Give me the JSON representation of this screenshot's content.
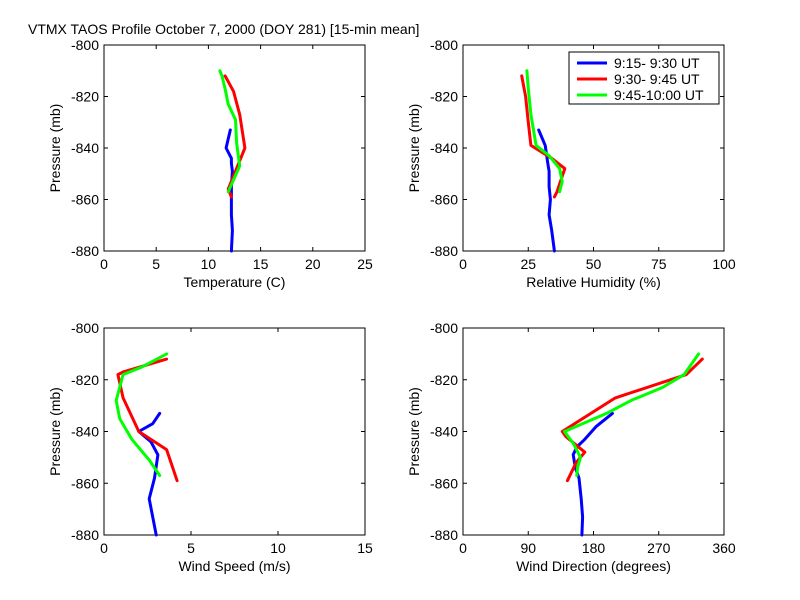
{
  "figure_title": "VTMX TAOS Profile   October 7, 2000 (DOY 281) [15-min mean]",
  "colors": {
    "series_0": "#0000ff",
    "series_1": "#ff0000",
    "series_2": "#00ff00"
  },
  "legend": [
    "9:15- 9:30 UT",
    "9:30- 9:45 UT",
    "9:45-10:00 UT"
  ],
  "chart_data": [
    {
      "type": "line",
      "title": "",
      "xlabel": "Temperature (C)",
      "ylabel": "Pressure (mb)",
      "xlim": [
        0,
        25
      ],
      "ylim": [
        -880,
        -800
      ],
      "xticks": [
        0,
        5,
        10,
        15,
        20,
        25
      ],
      "yticks": [
        -880,
        -860,
        -840,
        -820,
        -800
      ],
      "series": [
        {
          "name": "9:15- 9:30 UT",
          "x": [
            12.2,
            12.3,
            12.2,
            12.2,
            12.2,
            12.3,
            12.2,
            12.2,
            11.7,
            12.1
          ],
          "y": [
            -880,
            -872,
            -866,
            -860,
            -855,
            -849,
            -846,
            -844,
            -840,
            -833
          ]
        },
        {
          "name": "9:30- 9:45 UT",
          "x": [
            12.2,
            11.9,
            12.6,
            13.5,
            13.0,
            12.4,
            11.6
          ],
          "y": [
            -859,
            -856,
            -849,
            -840,
            -827,
            -818,
            -812
          ]
        },
        {
          "name": "9:45-10:00 UT",
          "x": [
            11.9,
            13.0,
            12.7,
            12.6,
            11.9,
            11.6,
            11.3,
            11.1
          ],
          "y": [
            -857,
            -847,
            -838,
            -829,
            -823,
            -817,
            -812,
            -810
          ]
        }
      ]
    },
    {
      "type": "line",
      "title": "",
      "xlabel": "Relative Humidity (%)",
      "ylabel": "Pressure (mb)",
      "xlim": [
        0,
        100
      ],
      "ylim": [
        -880,
        -800
      ],
      "xticks": [
        0,
        25,
        50,
        75,
        100
      ],
      "yticks": [
        -880,
        -860,
        -840,
        -820,
        -800
      ],
      "series": [
        {
          "name": "9:15- 9:30 UT",
          "x": [
            35,
            34,
            33,
            33.5,
            33,
            33,
            32.5,
            31.5,
            29
          ],
          "y": [
            -880,
            -872,
            -866,
            -860,
            -855,
            -849,
            -846,
            -839,
            -833
          ]
        },
        {
          "name": "9:30- 9:45 UT",
          "x": [
            35,
            36,
            39,
            34,
            26,
            25,
            24,
            22.5
          ],
          "y": [
            -859,
            -857,
            -848,
            -844,
            -839,
            -830,
            -820,
            -812
          ]
        },
        {
          "name": "9:45-10:00 UT",
          "x": [
            37,
            38,
            37,
            33,
            28,
            26,
            25,
            24.5
          ],
          "y": [
            -857,
            -853,
            -848,
            -843,
            -839,
            -827,
            -817,
            -810
          ]
        }
      ]
    },
    {
      "type": "line",
      "title": "",
      "xlabel": "Wind Speed (m/s)",
      "ylabel": "Pressure (mb)",
      "xlim": [
        0,
        15
      ],
      "ylim": [
        -880,
        -800
      ],
      "xticks": [
        0,
        5,
        10,
        15
      ],
      "yticks": [
        -880,
        -860,
        -840,
        -820,
        -800
      ],
      "series": [
        {
          "name": "9:15- 9:30 UT",
          "x": [
            3.0,
            2.8,
            2.6,
            2.9,
            3.1,
            2.7,
            2.0,
            2.8,
            3.2
          ],
          "y": [
            -880,
            -873,
            -866,
            -858,
            -849,
            -844,
            -840,
            -837,
            -833
          ]
        },
        {
          "name": "9:30- 9:45 UT",
          "x": [
            4.2,
            3.6,
            2.0,
            1.1,
            0.8,
            1.1,
            3.6
          ],
          "y": [
            -859,
            -847,
            -840,
            -827,
            -818,
            -817,
            -812
          ]
        },
        {
          "name": "9:45-10:00 UT",
          "x": [
            3.2,
            2.6,
            1.6,
            0.9,
            0.7,
            1.1,
            2.2,
            3.6
          ],
          "y": [
            -857,
            -851,
            -843,
            -835,
            -828,
            -818,
            -815,
            -810
          ]
        }
      ]
    },
    {
      "type": "line",
      "title": "",
      "xlabel": "Wind Direction (degrees)",
      "ylabel": "Pressure (mb)",
      "xlim": [
        0,
        360
      ],
      "ylim": [
        -880,
        -800
      ],
      "xticks": [
        0,
        90,
        180,
        270,
        360
      ],
      "yticks": [
        -880,
        -860,
        -840,
        -820,
        -800
      ],
      "series": [
        {
          "name": "9:15- 9:30 UT",
          "x": [
            164,
            165,
            163,
            160,
            155,
            152,
            157,
            168,
            184,
            206
          ],
          "y": [
            -880,
            -873,
            -866,
            -858,
            -854,
            -849,
            -846,
            -843,
            -838,
            -833
          ]
        },
        {
          "name": "9:30- 9:45 UT",
          "x": [
            144,
            156,
            168,
            142,
            137,
            210,
            308,
            330
          ],
          "y": [
            -859,
            -852,
            -848,
            -842,
            -840,
            -827,
            -818,
            -812
          ]
        },
        {
          "name": "9:45-10:00 UT",
          "x": [
            157,
            158,
            162,
            153,
            140,
            198,
            232,
            275,
            305,
            325
          ],
          "y": [
            -857,
            -854,
            -850,
            -845,
            -840,
            -833,
            -828,
            -823,
            -818,
            -810
          ]
        }
      ]
    }
  ]
}
